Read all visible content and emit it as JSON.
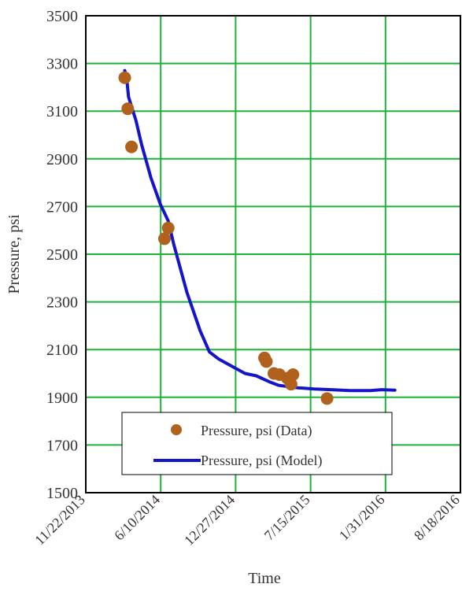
{
  "chart_data": {
    "type": "scatter",
    "title": "",
    "xlabel": "Time",
    "ylabel": "Pressure, psi",
    "x_axis_type": "date",
    "xlim": [
      "11/22/2013",
      "8/18/2016"
    ],
    "ylim": [
      1500,
      3500
    ],
    "x_ticks": [
      "11/22/2013",
      "6/10/2014",
      "12/27/2014",
      "7/15/2015",
      "1/31/2016",
      "8/18/2016"
    ],
    "y_ticks": [
      1500,
      1700,
      1900,
      2100,
      2300,
      2500,
      2700,
      2900,
      3100,
      3300,
      3500
    ],
    "grid": true,
    "grid_color": "#1db33a",
    "legend_position": "bottom-center",
    "series": [
      {
        "name": "Pressure, psi (Data)",
        "kind": "scatter",
        "color": "#b0611e",
        "points": [
          {
            "x": "3/6/2014",
            "y": 3240
          },
          {
            "x": "3/14/2014",
            "y": 3110
          },
          {
            "x": "3/24/2014",
            "y": 2950
          },
          {
            "x": "6/20/2014",
            "y": 2565
          },
          {
            "x": "6/30/2014",
            "y": 2610
          },
          {
            "x": "3/14/2015",
            "y": 2065
          },
          {
            "x": "3/19/2015",
            "y": 2050
          },
          {
            "x": "4/8/2015",
            "y": 2000
          },
          {
            "x": "4/23/2015",
            "y": 1995
          },
          {
            "x": "5/14/2015",
            "y": 1980
          },
          {
            "x": "5/24/2015",
            "y": 1955
          },
          {
            "x": "5/29/2015",
            "y": 1995
          },
          {
            "x": "8/28/2015",
            "y": 1895
          }
        ]
      },
      {
        "name": "Pressure, psi (Model)",
        "kind": "line",
        "color": "#1414c8",
        "points": [
          {
            "x": "3/6/2014",
            "y": 3270
          },
          {
            "x": "3/11/2014",
            "y": 3240
          },
          {
            "x": "3/16/2014",
            "y": 3160
          },
          {
            "x": "3/26/2014",
            "y": 3110
          },
          {
            "x": "4/5/2014",
            "y": 3060
          },
          {
            "x": "4/20/2014",
            "y": 2960
          },
          {
            "x": "5/15/2014",
            "y": 2820
          },
          {
            "x": "6/9/2014",
            "y": 2710
          },
          {
            "x": "6/30/2014",
            "y": 2640
          },
          {
            "x": "7/15/2014",
            "y": 2540
          },
          {
            "x": "8/19/2014",
            "y": 2340
          },
          {
            "x": "9/23/2014",
            "y": 2180
          },
          {
            "x": "10/18/2014",
            "y": 2090
          },
          {
            "x": "11/12/2014",
            "y": 2060
          },
          {
            "x": "12/17/2014",
            "y": 2030
          },
          {
            "x": "1/21/2015",
            "y": 2000
          },
          {
            "x": "2/20/2015",
            "y": 1990
          },
          {
            "x": "3/27/2015",
            "y": 1965
          },
          {
            "x": "4/21/2015",
            "y": 1950
          },
          {
            "x": "6/10/2015",
            "y": 1940
          },
          {
            "x": "7/25/2015",
            "y": 1935
          },
          {
            "x": "9/8/2015",
            "y": 1932
          },
          {
            "x": "10/28/2015",
            "y": 1928
          },
          {
            "x": "12/22/2015",
            "y": 1928
          },
          {
            "x": "1/21/2016",
            "y": 1932
          },
          {
            "x": "2/25/2016",
            "y": 1930
          }
        ]
      }
    ]
  }
}
